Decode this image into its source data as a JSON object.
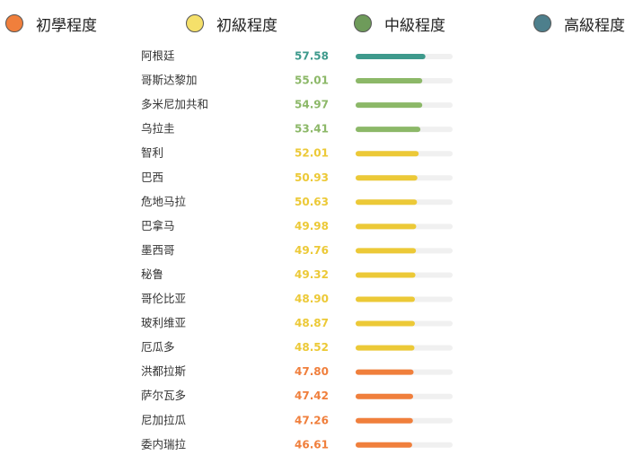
{
  "legend": [
    {
      "label": "初學程度",
      "color": "#f07f3c"
    },
    {
      "label": "初級程度",
      "color": "#f5e06a"
    },
    {
      "label": "中級程度",
      "color": "#6e9b5a"
    },
    {
      "label": "高級程度",
      "color": "#4d7f8c"
    }
  ],
  "colors": {
    "beginner": "#f07f3c",
    "elementary": "#ecc937",
    "intermediate": "#8cb868",
    "advanced": "#3e9a8c",
    "track": "#f0f0f0"
  },
  "chart_data": {
    "type": "bar",
    "orientation": "horizontal",
    "categories": [
      "阿根廷",
      "哥斯达黎加",
      "多米尼加共和",
      "乌拉圭",
      "智利",
      "巴西",
      "危地马拉",
      "巴拿马",
      "墨西哥",
      "秘鲁",
      "哥伦比亚",
      "玻利维亚",
      "厄瓜多",
      "洪都拉斯",
      "萨尔瓦多",
      "尼加拉瓜",
      "委内瑞拉"
    ],
    "values": [
      57.58,
      55.01,
      54.97,
      53.41,
      52.01,
      50.93,
      50.63,
      49.98,
      49.76,
      49.32,
      48.9,
      48.87,
      48.52,
      47.8,
      47.42,
      47.26,
      46.61
    ],
    "value_labels": [
      "57.58",
      "55.01",
      "54.97",
      "53.41",
      "52.01",
      "50.93",
      "50.63",
      "49.98",
      "49.76",
      "49.32",
      "48.90",
      "48.87",
      "48.52",
      "47.80",
      "47.42",
      "47.26",
      "46.61"
    ],
    "levels": [
      "advanced",
      "intermediate",
      "intermediate",
      "intermediate",
      "elementary",
      "elementary",
      "elementary",
      "elementary",
      "elementary",
      "elementary",
      "elementary",
      "elementary",
      "elementary",
      "beginner",
      "beginner",
      "beginner",
      "beginner"
    ],
    "xlim": [
      0,
      80
    ],
    "grid": false,
    "legend_position": "top"
  }
}
